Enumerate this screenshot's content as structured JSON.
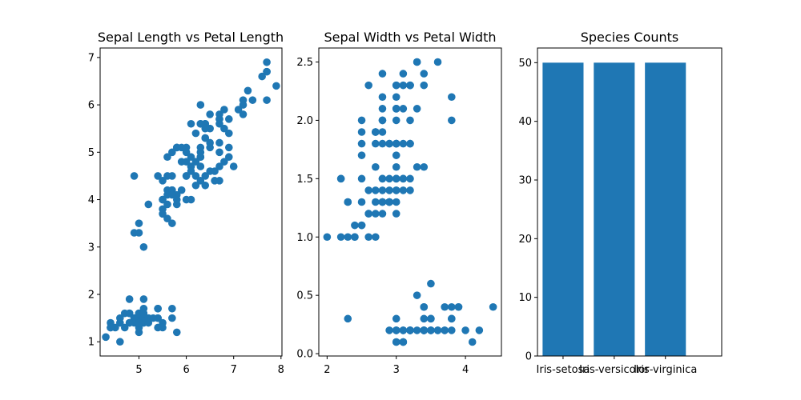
{
  "chart_data": [
    {
      "type": "scatter",
      "title": "Sepal Length vs Petal Length",
      "xlabel": "",
      "ylabel": "",
      "xlim": [
        4.18,
        8.02
      ],
      "ylim": [
        0.7,
        7.2
      ],
      "xticks": [
        "5",
        "6",
        "7",
        "8"
      ],
      "yticks": [
        "1",
        "2",
        "3",
        "4",
        "5",
        "6",
        "7"
      ],
      "color": "#1f77b4",
      "x": [
        5.1,
        4.9,
        4.7,
        4.6,
        5.0,
        5.4,
        4.6,
        5.0,
        4.4,
        4.9,
        5.4,
        4.8,
        4.8,
        4.3,
        5.8,
        5.7,
        5.4,
        5.1,
        5.7,
        5.1,
        5.4,
        5.1,
        4.6,
        5.1,
        4.8,
        5.0,
        5.0,
        5.2,
        5.2,
        4.7,
        4.8,
        5.4,
        5.2,
        5.5,
        4.9,
        5.0,
        5.5,
        4.9,
        4.4,
        5.1,
        5.0,
        4.5,
        4.4,
        5.0,
        5.1,
        4.8,
        5.1,
        4.6,
        5.3,
        5.0,
        7.0,
        6.4,
        6.9,
        5.5,
        6.5,
        5.7,
        6.3,
        4.9,
        6.6,
        5.2,
        5.0,
        5.9,
        6.0,
        6.1,
        5.6,
        6.7,
        5.6,
        5.8,
        6.2,
        5.6,
        5.9,
        6.1,
        6.3,
        6.1,
        6.4,
        6.6,
        6.8,
        6.7,
        6.0,
        5.7,
        5.5,
        5.5,
        5.8,
        6.0,
        5.4,
        6.0,
        6.7,
        6.3,
        5.6,
        5.5,
        5.5,
        6.1,
        5.8,
        5.0,
        5.6,
        5.7,
        5.7,
        6.2,
        5.1,
        5.7,
        6.3,
        5.8,
        7.1,
        6.3,
        6.5,
        7.6,
        4.9,
        7.3,
        6.7,
        7.2,
        6.5,
        6.4,
        6.8,
        5.7,
        5.8,
        6.4,
        6.5,
        7.7,
        7.7,
        6.0,
        6.9,
        5.6,
        7.7,
        6.3,
        6.7,
        7.2,
        6.2,
        6.1,
        6.4,
        7.2,
        7.4,
        7.9,
        6.4,
        6.3,
        6.1,
        7.7,
        6.3,
        6.4,
        6.0,
        6.9,
        6.7,
        6.9,
        5.8,
        6.8,
        6.7,
        6.7,
        6.3,
        6.5,
        6.2,
        5.9
      ],
      "y": [
        1.4,
        1.4,
        1.3,
        1.5,
        1.4,
        1.7,
        1.4,
        1.5,
        1.4,
        1.5,
        1.5,
        1.6,
        1.4,
        1.1,
        1.2,
        1.5,
        1.3,
        1.4,
        1.7,
        1.5,
        1.7,
        1.5,
        1.0,
        1.7,
        1.9,
        1.6,
        1.6,
        1.5,
        1.4,
        1.6,
        1.6,
        1.5,
        1.5,
        1.4,
        1.5,
        1.2,
        1.3,
        1.5,
        1.3,
        1.5,
        1.3,
        1.3,
        1.3,
        1.6,
        1.9,
        1.4,
        1.6,
        1.4,
        1.5,
        1.4,
        4.7,
        4.5,
        4.9,
        4.0,
        4.6,
        4.5,
        4.7,
        3.3,
        4.6,
        3.9,
        3.5,
        4.2,
        4.0,
        4.7,
        3.6,
        4.4,
        4.5,
        4.1,
        4.5,
        3.9,
        4.8,
        4.0,
        4.9,
        4.7,
        4.3,
        4.4,
        4.8,
        5.0,
        4.5,
        3.5,
        3.8,
        3.7,
        3.9,
        5.1,
        4.5,
        4.5,
        4.7,
        4.4,
        4.1,
        4.0,
        4.4,
        4.6,
        4.0,
        3.3,
        4.2,
        4.2,
        4.2,
        4.3,
        3.0,
        4.1,
        6.0,
        5.1,
        5.9,
        5.6,
        5.8,
        6.6,
        4.5,
        6.3,
        5.8,
        6.1,
        5.1,
        5.3,
        5.5,
        5.0,
        5.1,
        5.3,
        5.5,
        6.7,
        6.9,
        5.0,
        5.7,
        4.9,
        6.7,
        4.9,
        5.7,
        6.0,
        4.8,
        4.9,
        5.6,
        5.8,
        6.1,
        6.4,
        5.6,
        5.1,
        5.6,
        6.1,
        5.6,
        5.5,
        4.8,
        5.4,
        5.6,
        5.1,
        5.1,
        5.9,
        5.7,
        5.2,
        5.0,
        5.2,
        5.4,
        5.1
      ]
    },
    {
      "type": "scatter",
      "title": "Sepal Width vs Petal Width",
      "xlabel": "",
      "ylabel": "",
      "xlim": [
        1.88,
        4.52
      ],
      "ylim": [
        -0.02,
        2.62
      ],
      "xticks": [
        "2",
        "3",
        "4"
      ],
      "yticks": [
        "0.0",
        "0.5",
        "1.0",
        "1.5",
        "2.0",
        "2.5"
      ],
      "color": "#1f77b4",
      "x": [
        3.5,
        3.0,
        3.2,
        3.1,
        3.6,
        3.9,
        3.4,
        3.4,
        2.9,
        3.1,
        3.7,
        3.4,
        3.0,
        3.0,
        4.0,
        4.4,
        3.9,
        3.5,
        3.8,
        3.8,
        3.4,
        3.7,
        3.6,
        3.3,
        3.4,
        3.0,
        3.4,
        3.5,
        3.4,
        3.2,
        3.1,
        3.4,
        4.1,
        4.2,
        3.1,
        3.2,
        3.5,
        3.1,
        3.0,
        3.4,
        3.5,
        2.3,
        3.2,
        3.5,
        3.8,
        3.0,
        3.8,
        3.2,
        3.7,
        3.3,
        3.2,
        3.2,
        3.1,
        2.3,
        2.8,
        2.8,
        3.3,
        2.4,
        2.9,
        2.7,
        2.0,
        3.0,
        2.2,
        2.9,
        2.9,
        3.1,
        3.0,
        2.7,
        2.2,
        2.5,
        3.2,
        2.8,
        2.5,
        2.8,
        2.9,
        3.0,
        2.8,
        3.0,
        2.9,
        2.6,
        2.4,
        2.4,
        2.7,
        2.7,
        3.0,
        3.4,
        3.1,
        2.3,
        3.0,
        2.5,
        2.6,
        3.0,
        2.6,
        2.3,
        2.7,
        3.0,
        2.9,
        2.9,
        2.5,
        2.8,
        3.3,
        2.7,
        3.0,
        2.9,
        3.0,
        3.0,
        2.5,
        2.9,
        2.5,
        3.6,
        3.2,
        2.7,
        3.0,
        2.5,
        2.8,
        3.2,
        3.0,
        3.8,
        2.6,
        2.2,
        3.2,
        2.8,
        2.8,
        2.7,
        3.3,
        3.2,
        2.8,
        3.0,
        2.8,
        3.0,
        2.8,
        3.8,
        2.8,
        2.8,
        2.6,
        3.0,
        3.4,
        3.1,
        3.0,
        3.1,
        3.1,
        3.1,
        2.7,
        3.2,
        3.3,
        3.0,
        2.5,
        3.0,
        3.4,
        3.0
      ],
      "y": [
        0.2,
        0.2,
        0.2,
        0.2,
        0.2,
        0.4,
        0.3,
        0.2,
        0.2,
        0.1,
        0.2,
        0.2,
        0.1,
        0.1,
        0.2,
        0.4,
        0.4,
        0.3,
        0.3,
        0.3,
        0.2,
        0.4,
        0.2,
        0.5,
        0.2,
        0.2,
        0.4,
        0.2,
        0.2,
        0.2,
        0.2,
        0.4,
        0.1,
        0.2,
        0.1,
        0.2,
        0.2,
        0.1,
        0.2,
        0.2,
        0.3,
        0.3,
        0.2,
        0.6,
        0.4,
        0.3,
        0.2,
        0.2,
        0.2,
        0.2,
        1.4,
        1.5,
        1.5,
        1.3,
        1.5,
        1.3,
        1.6,
        1.0,
        1.3,
        1.4,
        1.0,
        1.5,
        1.0,
        1.4,
        1.3,
        1.4,
        1.5,
        1.0,
        1.5,
        1.1,
        1.8,
        1.3,
        1.5,
        1.2,
        1.3,
        1.4,
        1.4,
        1.7,
        1.5,
        1.0,
        1.1,
        1.0,
        1.2,
        1.6,
        1.5,
        1.6,
        1.5,
        1.3,
        1.3,
        1.3,
        1.2,
        1.4,
        1.2,
        1.0,
        1.3,
        1.2,
        1.3,
        1.3,
        1.1,
        1.3,
        2.5,
        1.9,
        2.1,
        1.8,
        2.2,
        2.1,
        1.7,
        1.8,
        1.8,
        2.5,
        2.0,
        1.9,
        2.1,
        2.0,
        2.4,
        2.3,
        1.8,
        2.2,
        2.3,
        1.5,
        2.3,
        2.0,
        2.0,
        1.8,
        2.1,
        1.8,
        1.8,
        1.8,
        2.1,
        1.6,
        1.9,
        2.0,
        2.2,
        1.5,
        1.4,
        2.3,
        2.4,
        1.8,
        1.8,
        2.1,
        2.4,
        2.3,
        1.9,
        2.3,
        2.5,
        2.3,
        1.9,
        2.0,
        2.3,
        1.8
      ]
    },
    {
      "type": "bar",
      "title": "Species Counts",
      "xlabel": "",
      "ylabel": "",
      "categories": [
        "Iris-setosa",
        "Iris-versicolor",
        "Iris-virginica"
      ],
      "values": [
        50,
        50,
        50
      ],
      "ylim": [
        0,
        52.5
      ],
      "yticks": [
        "0",
        "10",
        "20",
        "30",
        "40",
        "50"
      ],
      "color": "#1f77b4"
    }
  ]
}
